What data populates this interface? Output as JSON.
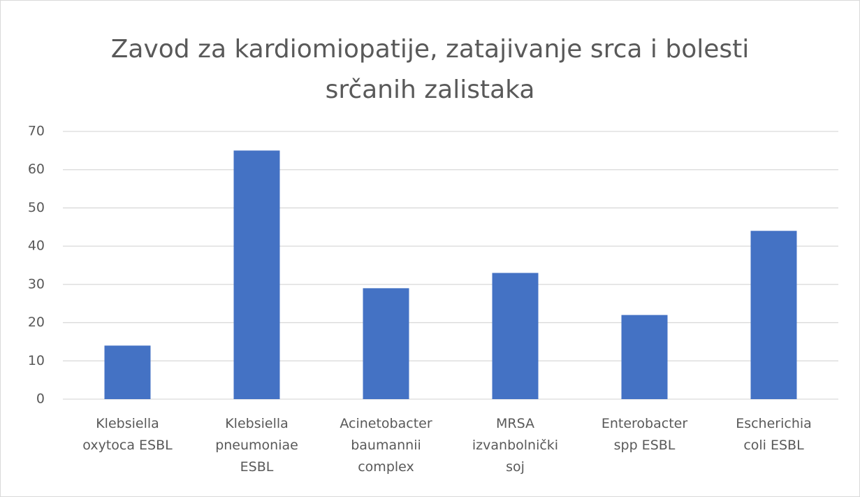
{
  "chart_data": {
    "type": "bar",
    "title": "Zavod za kardiomiopatije, zatajivanje srca i bolesti\nsrčanih zalistaka",
    "categories": [
      "Klebsiella\noxytoca ESBL",
      "Klebsiella\npneumoniae\nESBL",
      "Acinetobacter\nbaumannii\ncomplex",
      "MRSA\nizvanbolnički\nsoj",
      "Enterobacter\nspp ESBL",
      "Escherichia\ncoli ESBL"
    ],
    "values": [
      14,
      65,
      29,
      33,
      22,
      44
    ],
    "color": "#4472c4",
    "ylim": [
      0,
      70
    ],
    "yticks": [
      0,
      10,
      20,
      30,
      40,
      50,
      60,
      70
    ],
    "grid": true
  }
}
